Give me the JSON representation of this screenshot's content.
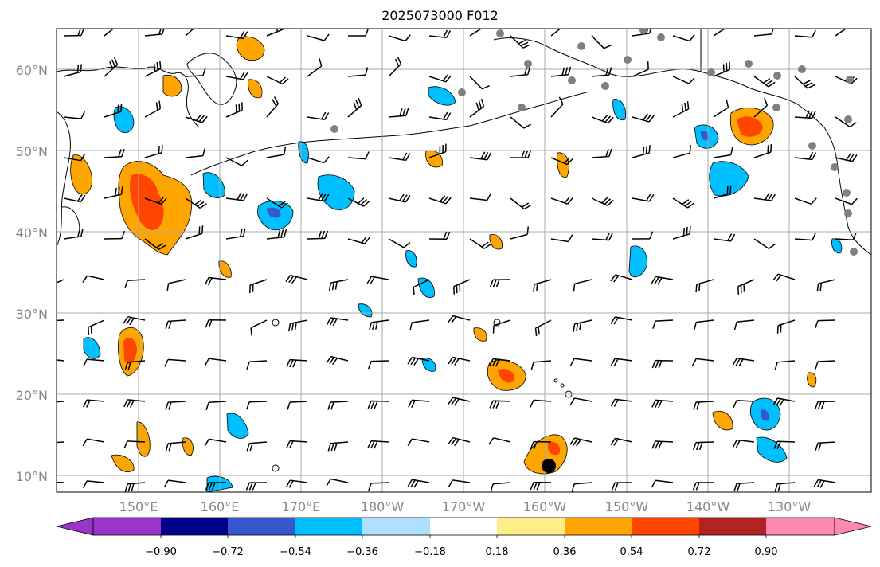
{
  "title": "2025073000 F012",
  "lat_labels": [
    "60°N",
    "50°N",
    "40°N",
    "30°N",
    "20°N",
    "10°N"
  ],
  "lon_labels": [
    "150°E",
    "160°E",
    "170°E",
    "180°W",
    "170°W",
    "160°W",
    "150°W",
    "140°W",
    "130°W"
  ],
  "colorbar": {
    "tick_labels": [
      "−0.90",
      "−0.72",
      "−0.54",
      "−0.36",
      "−0.18",
      "0.18",
      "0.36",
      "0.54",
      "0.72",
      "0.90"
    ],
    "colors": [
      "#9a35cc",
      "#00008b",
      "#3558cc",
      "#00bfff",
      "#b0e0ff",
      "#ffffff",
      "#ffee88",
      "#ffa500",
      "#ff4500",
      "#b22222",
      "#ff88b0"
    ]
  },
  "style": {
    "axis_label_color": "#888888",
    "grid_color": "#aaaaaa",
    "coast_color": "#000000",
    "station_color": "#808080"
  }
}
